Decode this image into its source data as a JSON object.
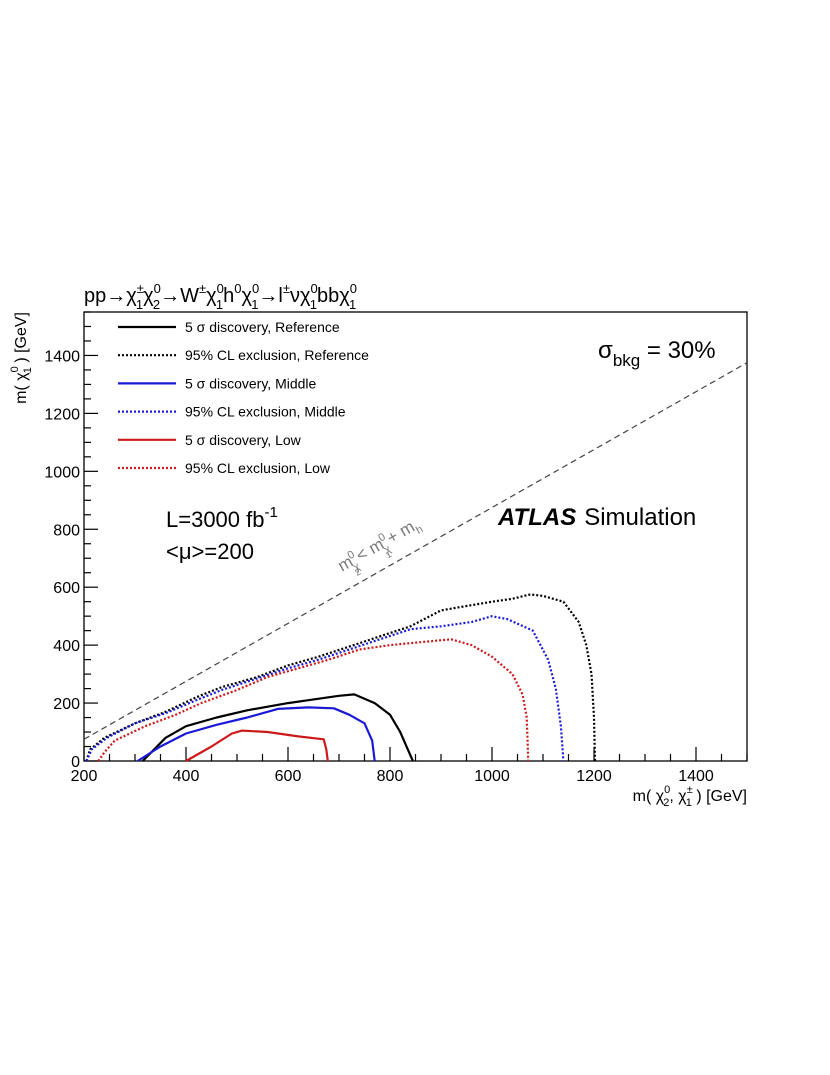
{
  "chart_data": {
    "type": "line",
    "title_parts": {
      "a": "pp→",
      "b": "χ",
      "c": "±",
      "d": "1",
      "e": "χ",
      "f": "0",
      "g": "2",
      "h": "→W",
      "i": "±",
      "j": "χ",
      "k": "0",
      "l": "1",
      "m": "h",
      "n": "0",
      "o": "χ",
      "p": "0",
      "q": "1",
      "r": "→l",
      "s": "±",
      "t": "ν",
      "u": "χ",
      "v": "0",
      "w": "1",
      "x": "bb",
      "y": "χ",
      "z": "0",
      "aa": "1"
    },
    "xlabel_parts": {
      "a": "m( ",
      "b": "χ",
      "c": "0",
      "d": "2",
      "e": ",  ",
      "f": "χ",
      "g": "±",
      "h": "1",
      "i": " ) [GeV]"
    },
    "ylabel_parts": {
      "a": "m( ",
      "b": "χ",
      "c": "0",
      "d": "1",
      "e": " ) [GeV]"
    },
    "xlim": [
      200,
      1500
    ],
    "ylim": [
      0,
      1550
    ],
    "x_ticks": [
      200,
      400,
      600,
      800,
      1000,
      1200,
      1400
    ],
    "y_ticks": [
      0,
      200,
      400,
      600,
      800,
      1000,
      1200,
      1400
    ],
    "sigma_parts": {
      "a": "σ",
      "b": "bkg",
      "c": " = 30%"
    },
    "lumi_parts": {
      "a": "L=3000 fb",
      "b": "-1"
    },
    "pileup": "<μ>=200",
    "atlas_bold": "ATLAS",
    "atlas_rest": "Simulation",
    "diagonal_label_parts": {
      "a": "m",
      "b": "χ",
      "c": "0",
      "d": "2",
      "e": " < m",
      "f": "χ",
      "g": "0",
      "h": "1",
      "i": " + m",
      "j": "h"
    },
    "diagonal": {
      "x": [
        200,
        1500
      ],
      "y": [
        75,
        1375
      ]
    },
    "series": [
      {
        "name": "5 σ discovery, Reference",
        "color": "#000000",
        "style": "solid",
        "x": [
          315,
          360,
          400,
          460,
          520,
          600,
          640,
          700,
          730,
          770,
          800,
          820,
          835,
          845
        ],
        "y": [
          0,
          80,
          120,
          150,
          175,
          200,
          210,
          225,
          230,
          200,
          160,
          100,
          40,
          0
        ]
      },
      {
        "name": "95% CL exclusion, Reference",
        "color": "#000000",
        "style": "dotted",
        "x": [
          205,
          212,
          240,
          300,
          360,
          420,
          470,
          540,
          600,
          660,
          720,
          780,
          840,
          900,
          950,
          1000,
          1040,
          1075,
          1100,
          1140,
          1170,
          1185,
          1195,
          1200,
          1202
        ],
        "y": [
          0,
          40,
          80,
          130,
          170,
          220,
          255,
          290,
          330,
          360,
          395,
          430,
          465,
          520,
          535,
          550,
          560,
          575,
          570,
          550,
          480,
          400,
          300,
          150,
          0
        ]
      },
      {
        "name": "5 σ discovery, Middle",
        "color": "#1a1ad6",
        "style": "solid",
        "x": [
          305,
          350,
          400,
          460,
          520,
          580,
          640,
          690,
          720,
          750,
          765,
          770
        ],
        "y": [
          0,
          50,
          95,
          125,
          150,
          180,
          185,
          182,
          160,
          130,
          70,
          0
        ]
      },
      {
        "name": "95% CL exclusion, Middle",
        "color": "#1a1ad6",
        "style": "dotted",
        "x": [
          205,
          215,
          245,
          300,
          360,
          420,
          470,
          540,
          600,
          660,
          720,
          780,
          840,
          900,
          960,
          1000,
          1030,
          1080,
          1110,
          1125,
          1135,
          1140
        ],
        "y": [
          0,
          40,
          80,
          130,
          165,
          210,
          245,
          285,
          320,
          350,
          385,
          420,
          455,
          465,
          480,
          500,
          490,
          450,
          350,
          250,
          120,
          0
        ]
      },
      {
        "name": "5 σ discovery, Low",
        "color": "#cc1a1a",
        "style": "solid",
        "x": [
          400,
          450,
          490,
          510,
          560,
          620,
          670,
          675,
          678
        ],
        "y": [
          0,
          50,
          95,
          105,
          100,
          85,
          75,
          40,
          0
        ]
      },
      {
        "name": "95% CL exclusion, Low",
        "color": "#cc1a1a",
        "style": "dotted",
        "x": [
          228,
          240,
          260,
          320,
          380,
          430,
          500,
          560,
          620,
          680,
          740,
          800,
          860,
          920,
          960,
          1000,
          1040,
          1060,
          1068,
          1070,
          1071
        ],
        "y": [
          0,
          30,
          70,
          120,
          160,
          200,
          245,
          290,
          320,
          350,
          385,
          400,
          410,
          420,
          400,
          360,
          300,
          230,
          150,
          60,
          0
        ]
      }
    ]
  }
}
